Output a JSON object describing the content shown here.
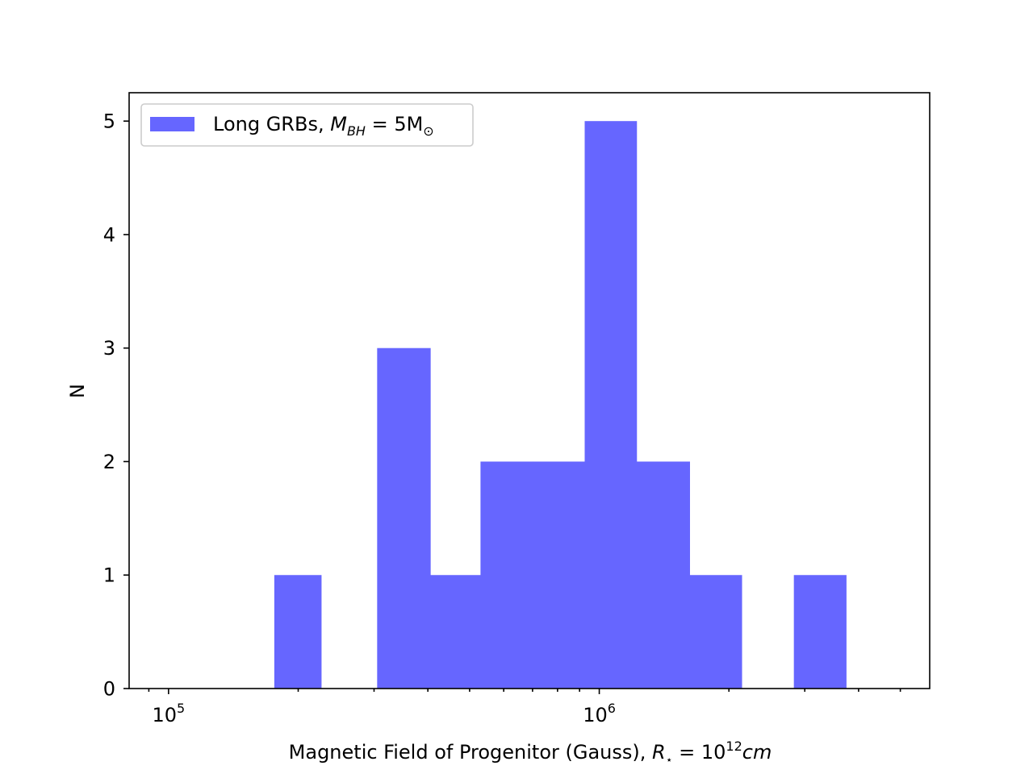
{
  "chart_data": {
    "type": "bar",
    "title": "",
    "xlabel": "Magnetic Field of Progenitor (Gauss), R⋆ = 10¹²cm",
    "ylabel": "N",
    "x_scale": "log",
    "xlim": [
      81000,
      5850000
    ],
    "ylim": [
      0,
      5.25
    ],
    "bins": [
      {
        "x0": 176000,
        "x1": 226000,
        "count": 1
      },
      {
        "x0": 226000,
        "x1": 305000,
        "count": 0
      },
      {
        "x0": 305000,
        "x1": 405000,
        "count": 3
      },
      {
        "x0": 405000,
        "x1": 530000,
        "count": 1
      },
      {
        "x0": 530000,
        "x1": 700000,
        "count": 2
      },
      {
        "x0": 700000,
        "x1": 925000,
        "count": 2
      },
      {
        "x0": 925000,
        "x1": 1220000,
        "count": 5
      },
      {
        "x0": 1220000,
        "x1": 1620000,
        "count": 2
      },
      {
        "x0": 1620000,
        "x1": 2140000,
        "count": 1
      },
      {
        "x0": 2140000,
        "x1": 2830000,
        "count": 0
      },
      {
        "x0": 2830000,
        "x1": 3740000,
        "count": 1
      }
    ],
    "x_major_ticks": [
      {
        "value": 100000,
        "label": "10",
        "exp": "5"
      },
      {
        "value": 1000000,
        "label": "10",
        "exp": "6"
      }
    ],
    "y_ticks": [
      0,
      1,
      2,
      3,
      4,
      5
    ],
    "legend": {
      "label_text": "Long GRBs, ",
      "label_math": "M",
      "label_math_sub": "BH",
      "label_math_rest": " = 5M",
      "label_math_rest_sub": "⊙",
      "placement": "upper-left"
    },
    "bar_color": "#6666ff",
    "grid": false
  }
}
